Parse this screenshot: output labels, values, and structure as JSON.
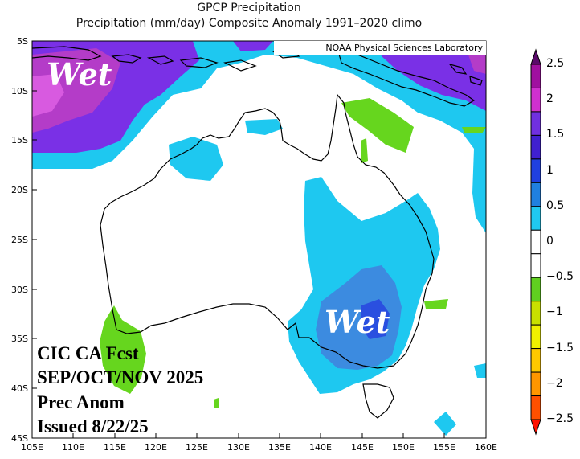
{
  "title_line1": "GPCP Precipitation",
  "title_line2": "Precipitation (mm/day) Composite Anomaly 1991–2020 climo",
  "credit": "NOAA Physical Sciences Laboratory",
  "region_labels": [
    "Wet",
    "Wet"
  ],
  "forecast": {
    "line1": "CIC CA Fcst",
    "line2": "SEP/OCT/NOV 2025",
    "line3": "Prec Anom",
    "line4": "Issued 8/22/25"
  },
  "axes": {
    "lon_labels": [
      "105E",
      "110E",
      "115E",
      "120E",
      "125E",
      "130E",
      "135E",
      "140E",
      "145E",
      "150E",
      "155E",
      "160E"
    ],
    "lat_labels": [
      "5S",
      "10S",
      "15S",
      "20S",
      "25S",
      "30S",
      "35S",
      "40S",
      "45S"
    ]
  },
  "colorbar": {
    "labels": [
      "2.5",
      "2",
      "1.5",
      "1",
      "0.5",
      "0",
      "−0.5",
      "−1",
      "−1.5",
      "−2",
      "−2.5"
    ],
    "colors": [
      "#5a0a6a",
      "#a010a0",
      "#d030d0",
      "#7030e0",
      "#4020d0",
      "#2040e0",
      "#2080e0",
      "#20c8f0",
      "#ffffff",
      "#ffffff",
      "#60d020",
      "#c8e000",
      "#f0f000",
      "#ffc800",
      "#ff9600",
      "#ff5000",
      "#ff1000"
    ]
  },
  "fill_colors": {
    "lightblue": "#1ec8f0",
    "medblue": "#3c8be0",
    "darkblue": "#2a4fe0",
    "purple": "#7a30e6",
    "magenta": "#b43cc8",
    "green": "#66d61e"
  }
}
